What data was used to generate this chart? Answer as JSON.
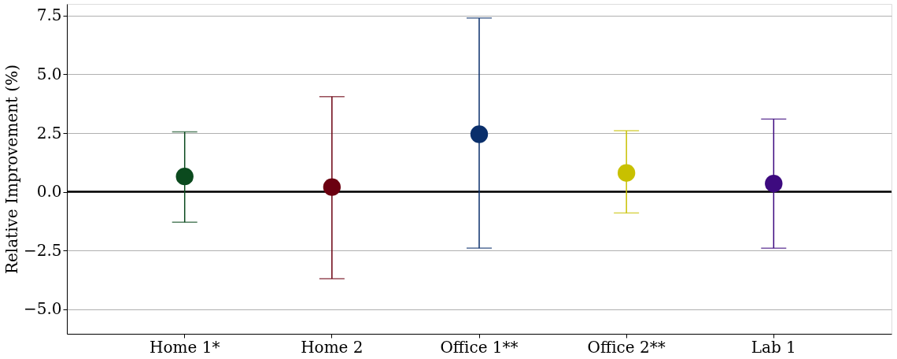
{
  "chart_data": {
    "type": "scatter",
    "ylabel": "Relative Improvement (%)",
    "categories": [
      "Home 1*",
      "Home 2",
      "Office 1**",
      "Office 2**",
      "Lab 1"
    ],
    "values": [
      0.65,
      0.2,
      2.45,
      0.8,
      0.35
    ],
    "colors": [
      "#0b4a1e",
      "#6b0010",
      "#0a2f6b",
      "#c8c000",
      "#3d0a7f"
    ],
    "errors": [
      [
        -1.3,
        2.55
      ],
      [
        -3.7,
        4.05
      ],
      [
        -2.4,
        7.4
      ],
      [
        -0.9,
        2.6
      ],
      [
        -2.4,
        3.1
      ]
    ],
    "ylim": [
      -6.05,
      8.0
    ],
    "yticks": [
      {
        "value": -5,
        "label": "−5.0"
      },
      {
        "value": -2.5,
        "label": "−2.5"
      },
      {
        "value": 0,
        "label": "0.0"
      },
      {
        "value": 2.5,
        "label": "2.5"
      },
      {
        "value": 5,
        "label": "5.0"
      },
      {
        "value": 7.5,
        "label": "7.5"
      }
    ],
    "grid": "y",
    "marker": "circle",
    "ref_lines": [
      {
        "axis": "y",
        "value": 0,
        "color": "#000000"
      }
    ]
  }
}
